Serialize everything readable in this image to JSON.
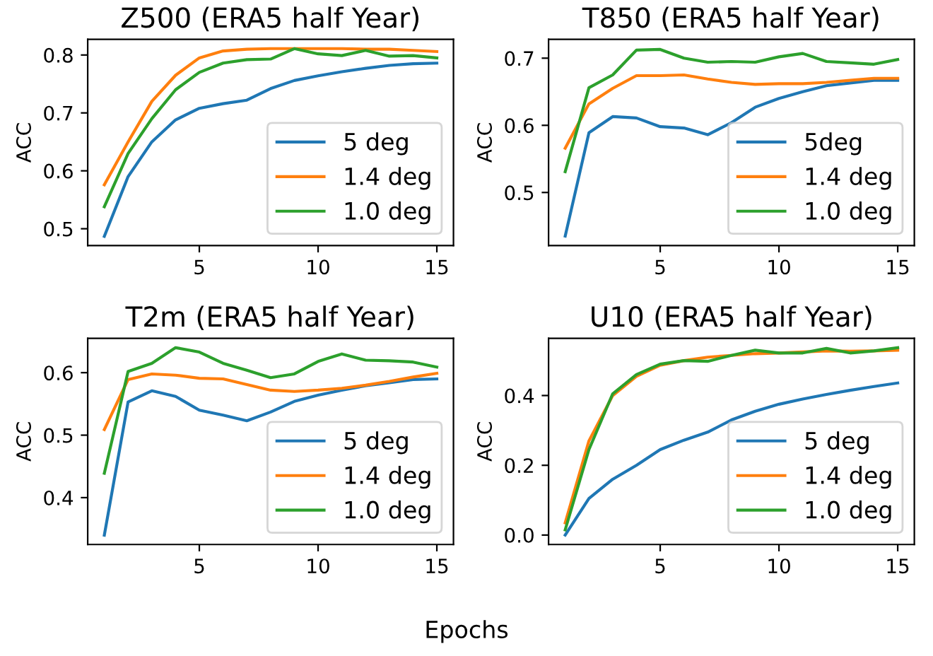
{
  "chart_data": [
    {
      "type": "line",
      "title": "Z500 (ERA5 half Year)",
      "ylabel": "ACC",
      "x": [
        1,
        2,
        3,
        4,
        5,
        6,
        7,
        8,
        9,
        10,
        11,
        12,
        13,
        14,
        15
      ],
      "xlim": [
        0.3,
        15.7
      ],
      "xticks": [
        5,
        10,
        15
      ],
      "ylim": [
        0.471,
        0.827
      ],
      "yticks": [
        0.5,
        0.6,
        0.7,
        0.8
      ],
      "legend": "lower right",
      "series": [
        {
          "name": "5 deg",
          "color": "#1f77b4",
          "values": [
            0.487,
            0.59,
            0.65,
            0.688,
            0.708,
            0.716,
            0.722,
            0.742,
            0.756,
            0.764,
            0.771,
            0.777,
            0.782,
            0.785,
            0.786
          ]
        },
        {
          "name": "1.4 deg",
          "color": "#ff7f0e",
          "values": [
            0.576,
            0.65,
            0.72,
            0.765,
            0.795,
            0.807,
            0.81,
            0.811,
            0.811,
            0.811,
            0.811,
            0.81,
            0.81,
            0.808,
            0.806
          ]
        },
        {
          "name": "1.0 deg",
          "color": "#2ca02c",
          "values": [
            0.538,
            0.63,
            0.69,
            0.74,
            0.77,
            0.786,
            0.792,
            0.793,
            0.811,
            0.802,
            0.799,
            0.808,
            0.798,
            0.799,
            0.795
          ]
        }
      ]
    },
    {
      "type": "line",
      "title": "T850 (ERA5 half Year)",
      "ylabel": "ACC",
      "x": [
        1,
        2,
        3,
        4,
        5,
        6,
        7,
        8,
        9,
        10,
        11,
        12,
        13,
        14,
        15
      ],
      "xlim": [
        0.3,
        15.7
      ],
      "xticks": [
        5,
        10,
        15
      ],
      "ylim": [
        0.421,
        0.728
      ],
      "yticks": [
        0.5,
        0.6,
        0.7
      ],
      "legend": "lower right",
      "series": [
        {
          "name": "5deg",
          "color": "#1f77b4",
          "values": [
            0.435,
            0.589,
            0.613,
            0.611,
            0.598,
            0.596,
            0.586,
            0.604,
            0.627,
            0.64,
            0.65,
            0.659,
            0.663,
            0.667,
            0.667
          ]
        },
        {
          "name": "1.4 deg",
          "color": "#ff7f0e",
          "values": [
            0.566,
            0.632,
            0.655,
            0.674,
            0.674,
            0.675,
            0.669,
            0.664,
            0.661,
            0.662,
            0.662,
            0.664,
            0.667,
            0.67,
            0.67
          ]
        },
        {
          "name": "1.0 deg",
          "color": "#2ca02c",
          "values": [
            0.531,
            0.656,
            0.675,
            0.712,
            0.713,
            0.7,
            0.694,
            0.695,
            0.694,
            0.702,
            0.707,
            0.695,
            0.693,
            0.691,
            0.698
          ]
        }
      ]
    },
    {
      "type": "line",
      "title": "T2m (ERA5 half Year)",
      "ylabel": "ACC",
      "xlabel": "Epochs",
      "x": [
        1,
        2,
        3,
        4,
        5,
        6,
        7,
        8,
        9,
        10,
        11,
        12,
        13,
        14,
        15
      ],
      "xlim": [
        0.3,
        15.7
      ],
      "xticks": [
        5,
        10,
        15
      ],
      "ylim": [
        0.325,
        0.655
      ],
      "yticks": [
        0.4,
        0.5,
        0.6
      ],
      "legend": "lower right",
      "series": [
        {
          "name": "5 deg",
          "color": "#1f77b4",
          "values": [
            0.34,
            0.553,
            0.571,
            0.562,
            0.54,
            0.532,
            0.523,
            0.537,
            0.554,
            0.564,
            0.572,
            0.579,
            0.584,
            0.589,
            0.59
          ]
        },
        {
          "name": "1.4 deg",
          "color": "#ff7f0e",
          "values": [
            0.509,
            0.589,
            0.598,
            0.596,
            0.591,
            0.59,
            0.581,
            0.572,
            0.57,
            0.572,
            0.575,
            0.58,
            0.586,
            0.593,
            0.599
          ]
        },
        {
          "name": "1.0 deg",
          "color": "#2ca02c",
          "values": [
            0.439,
            0.602,
            0.615,
            0.64,
            0.633,
            0.615,
            0.604,
            0.592,
            0.598,
            0.618,
            0.63,
            0.62,
            0.619,
            0.617,
            0.609
          ]
        }
      ]
    },
    {
      "type": "line",
      "title": "U10 (ERA5 half Year)",
      "ylabel": "ACC",
      "x": [
        1,
        2,
        3,
        4,
        5,
        6,
        7,
        8,
        9,
        10,
        11,
        12,
        13,
        14,
        15
      ],
      "xlim": [
        0.3,
        15.7
      ],
      "xticks": [
        5,
        10,
        15
      ],
      "ylim": [
        -0.027,
        0.564
      ],
      "yticks": [
        {
          "value": 0.0,
          "label": "0.0"
        },
        0.2,
        0.4
      ],
      "legend": "lower right",
      "series": [
        {
          "name": "5 deg",
          "color": "#1f77b4",
          "values": [
            0.0,
            0.105,
            0.16,
            0.2,
            0.245,
            0.272,
            0.295,
            0.33,
            0.355,
            0.375,
            0.39,
            0.403,
            0.415,
            0.426,
            0.436
          ]
        },
        {
          "name": "1.4 deg",
          "color": "#ff7f0e",
          "values": [
            0.035,
            0.27,
            0.4,
            0.455,
            0.487,
            0.5,
            0.51,
            0.515,
            0.52,
            0.522,
            0.525,
            0.528,
            0.527,
            0.528,
            0.53
          ]
        },
        {
          "name": "1.0 deg",
          "color": "#2ca02c",
          "values": [
            0.015,
            0.245,
            0.405,
            0.46,
            0.49,
            0.5,
            0.498,
            0.515,
            0.53,
            0.522,
            0.522,
            0.535,
            0.522,
            0.528,
            0.537
          ]
        }
      ]
    }
  ]
}
